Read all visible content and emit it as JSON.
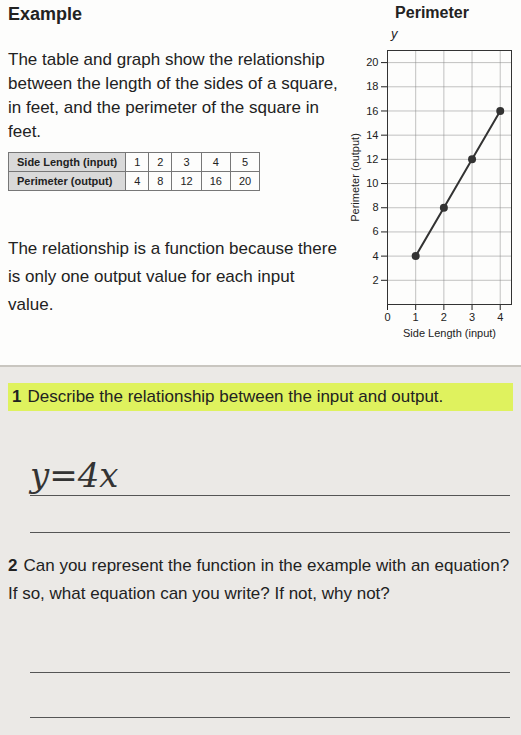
{
  "document": {
    "heading": "Example",
    "intro": "The table and graph show the relationship between the length of the sides of a square, in feet, and the perimeter of the square in feet.",
    "table": {
      "rows": [
        [
          "Side Length (input)",
          1,
          2,
          3,
          4,
          5
        ],
        [
          "Perimeter (output)",
          4,
          8,
          12,
          16,
          20
        ]
      ]
    },
    "conclusion": "The relationship is a function because there is only one output value for each input value.",
    "questions": [
      {
        "number": "1",
        "text": "Describe the relationship between the input and output.",
        "answer": "y=4x"
      },
      {
        "number": "2",
        "text": "Can you represent the function in the example with an equation? If so, what equation can you write? If not, why not?"
      }
    ]
  },
  "chart_data": {
    "type": "line",
    "title": "Perimeter",
    "axis_symbol": "y",
    "x_label": "Side Length (input)",
    "y_label": "Perimeter (output)",
    "x": [
      1,
      2,
      3,
      4
    ],
    "values": [
      4,
      8,
      12,
      16
    ],
    "color": "#333333",
    "marker": "circle",
    "xlim": [
      0,
      4.4
    ],
    "xticks": [
      0,
      1,
      2,
      3,
      4
    ],
    "ylim": [
      0,
      21
    ],
    "yticks": [
      2,
      4,
      6,
      8,
      10,
      12,
      14,
      16,
      18,
      20
    ],
    "grid": true
  }
}
